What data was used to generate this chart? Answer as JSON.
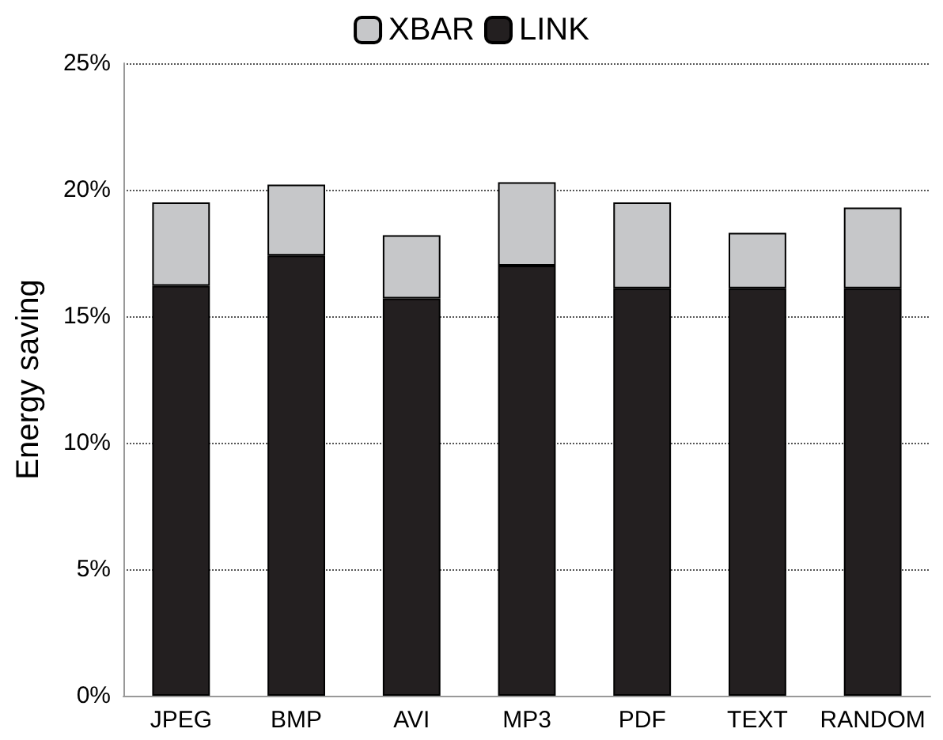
{
  "chart_data": {
    "type": "bar",
    "stacked": true,
    "ylabel": "Energy saving",
    "categories": [
      "JPEG",
      "BMP",
      "AVI",
      "MP3",
      "PDF",
      "TEXT",
      "RANDOM"
    ],
    "series": [
      {
        "name": "LINK",
        "color": "#231f20",
        "values": [
          16.2,
          17.4,
          15.7,
          17.0,
          16.1,
          16.1,
          16.1
        ]
      },
      {
        "name": "XBAR",
        "color": "#c6c7c9",
        "values": [
          3.3,
          2.8,
          2.5,
          3.3,
          3.4,
          2.2,
          3.2
        ]
      }
    ],
    "ylim": [
      0,
      25
    ],
    "yticks": [
      {
        "value": 0,
        "label": "0%"
      },
      {
        "value": 5,
        "label": "5%"
      },
      {
        "value": 10,
        "label": "10%"
      },
      {
        "value": 15,
        "label": "15%"
      },
      {
        "value": 20,
        "label": "20%"
      },
      {
        "value": 25,
        "label": "25%"
      }
    ],
    "grid": "y",
    "legend": "top"
  }
}
